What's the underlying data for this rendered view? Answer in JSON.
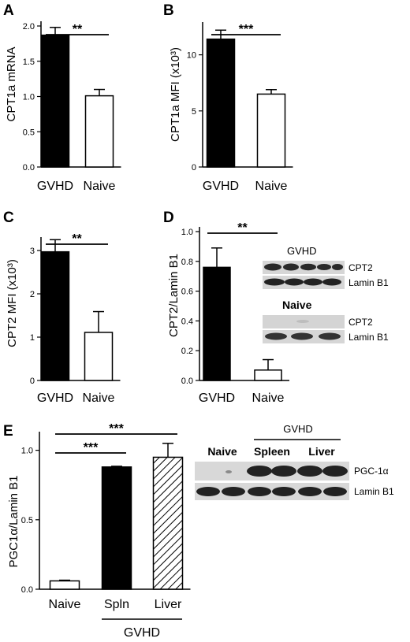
{
  "chart_data": [
    {
      "panel": "A",
      "type": "bar",
      "categories": [
        "GVHD",
        "Naive"
      ],
      "values": [
        1.87,
        1.01
      ],
      "errors": [
        0.11,
        0.09
      ],
      "fills": [
        "black",
        "white"
      ],
      "ylabel": "CPT1a mRNA",
      "ylim": [
        0,
        2.0
      ],
      "yticks": [
        "0.0",
        "0.5",
        "1.0",
        "1.5",
        "2.0"
      ],
      "comparisons": [
        {
          "from": 0,
          "to": 1,
          "label": "**"
        }
      ]
    },
    {
      "panel": "B",
      "type": "bar",
      "categories": [
        "GVHD",
        "Naive"
      ],
      "values": [
        11.4,
        6.5
      ],
      "errors": [
        0.8,
        0.4
      ],
      "fills": [
        "black",
        "white"
      ],
      "ylabel": "CPT1a MFI (x10³)",
      "ylim": [
        0,
        12.5
      ],
      "yticks": [
        "0",
        "5",
        "10"
      ],
      "comparisons": [
        {
          "from": 0,
          "to": 1,
          "label": "***"
        }
      ]
    },
    {
      "panel": "C",
      "type": "bar",
      "categories": [
        "GVHD",
        "Naive"
      ],
      "values": [
        2.97,
        1.11
      ],
      "errors": [
        0.28,
        0.48
      ],
      "fills": [
        "black",
        "white"
      ],
      "ylabel": "CPT2 MFI (x10³)",
      "ylim": [
        0,
        3.2
      ],
      "yticks": [
        "0",
        "1",
        "2",
        "3"
      ],
      "comparisons": [
        {
          "from": 0,
          "to": 1,
          "label": "**"
        }
      ]
    },
    {
      "panel": "D",
      "type": "bar",
      "categories": [
        "GVHD",
        "Naive"
      ],
      "values": [
        0.76,
        0.07
      ],
      "errors": [
        0.13,
        0.07
      ],
      "fills": [
        "black",
        "white"
      ],
      "ylabel": "CPT2/Lamin B1",
      "ylim": [
        0,
        1.0
      ],
      "yticks": [
        "0.0",
        "0.2",
        "0.4",
        "0.6",
        "0.8",
        "1.0"
      ],
      "comparisons": [
        {
          "from": 0,
          "to": 1,
          "label": "**"
        }
      ],
      "blot": {
        "groups": [
          {
            "label": "GVHD",
            "rows": [
              "CPT2",
              "Lamin B1"
            ]
          },
          {
            "label": "Naive",
            "rows": [
              "CPT2",
              "Lamin B1"
            ]
          }
        ]
      }
    },
    {
      "panel": "E",
      "type": "bar",
      "categories": [
        "Naive",
        "Spln",
        "Liver"
      ],
      "values": [
        0.06,
        0.88,
        0.95
      ],
      "errors": [
        0.005,
        0.005,
        0.1
      ],
      "fills": [
        "white",
        "black",
        "hatched"
      ],
      "ylabel": "PGC1α/Lamin B1",
      "ylim": [
        0,
        1.1
      ],
      "yticks": [
        "0.0",
        "0.5",
        "1.0"
      ],
      "group_label": "GVHD",
      "comparisons": [
        {
          "from": 0,
          "to": 1,
          "label": "***"
        },
        {
          "from": 0,
          "to": 2,
          "label": "***"
        }
      ],
      "blot": {
        "super_label": "GVHD",
        "lanes": [
          "Naive",
          "Spleen",
          "Liver"
        ],
        "rows": [
          "PGC-1α",
          "Lamin B1"
        ]
      }
    }
  ]
}
